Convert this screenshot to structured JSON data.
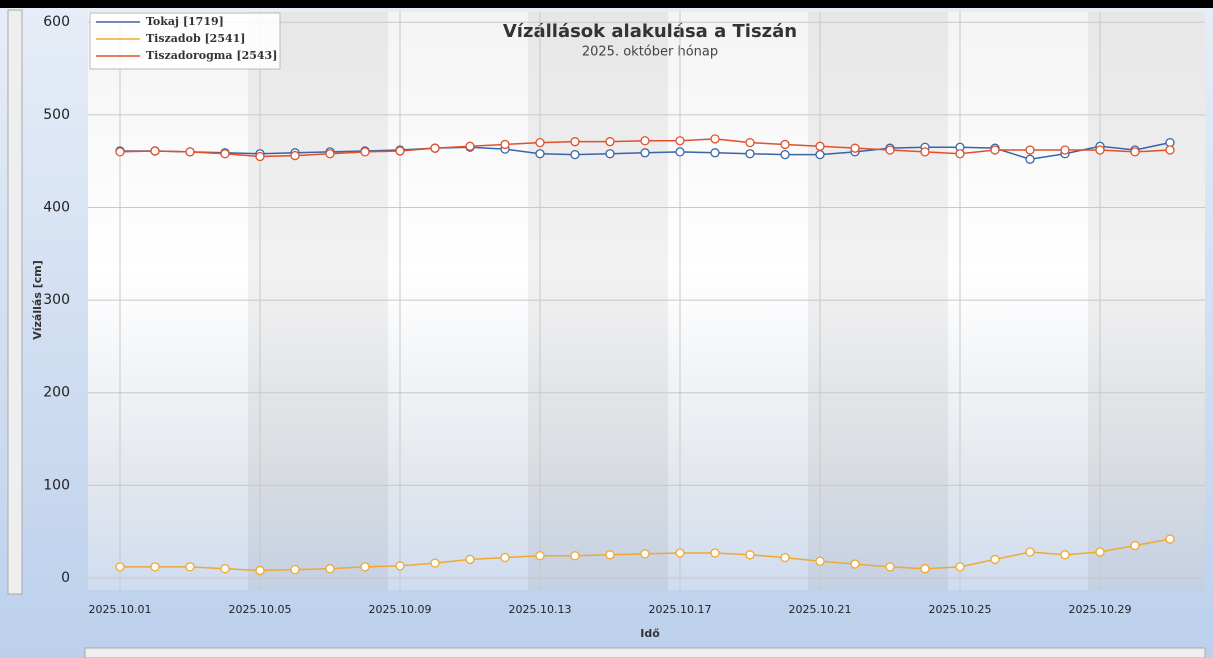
{
  "chart_data": {
    "type": "line",
    "title": "Vízállások alakulása a Tiszán",
    "subtitle": "2025. október hónap",
    "y_label": "Vízállás [cm]",
    "x_label": "Idő",
    "categories": [
      "2025.10.01",
      null,
      null,
      null,
      "2025.10.05",
      null,
      null,
      null,
      "2025.10.09",
      null,
      null,
      null,
      "2025.10.13",
      null,
      null,
      null,
      "2025.10.17",
      null,
      null,
      null,
      "2025.10.21",
      null,
      null,
      null,
      "2025.10.25",
      null,
      null,
      null,
      "2025.10.29",
      null,
      null
    ],
    "series": [
      {
        "name": "Tokaj [1719]",
        "color": "#3a64a8",
        "values": [
          461,
          461,
          460,
          459,
          458,
          459,
          460,
          461,
          462,
          464,
          465,
          463,
          458,
          457,
          458,
          459,
          460,
          459,
          458,
          457,
          457,
          460,
          464,
          465,
          465,
          464,
          452,
          458,
          466,
          462,
          470
        ]
      },
      {
        "name": "Tiszadob [2541]",
        "color": "#f0a830",
        "values": [
          12,
          12,
          12,
          10,
          8,
          9,
          10,
          12,
          13,
          16,
          20,
          22,
          24,
          24,
          25,
          26,
          27,
          27,
          25,
          22,
          18,
          15,
          12,
          10,
          12,
          20,
          28,
          25,
          28,
          35,
          42
        ]
      },
      {
        "name": "Tiszadorogma [2543]",
        "color": "#e0502a",
        "values": [
          460,
          461,
          460,
          458,
          455,
          456,
          458,
          460,
          461,
          464,
          466,
          468,
          470,
          471,
          471,
          472,
          472,
          474,
          470,
          468,
          466,
          464,
          462,
          460,
          458,
          462,
          462,
          462,
          462,
          460,
          462
        ]
      }
    ],
    "ylim": [
      -13,
      611
    ],
    "yticks": [
      0,
      100,
      200,
      300,
      400,
      500,
      600
    ],
    "grid": true,
    "legend": "top-left",
    "markers": true
  }
}
